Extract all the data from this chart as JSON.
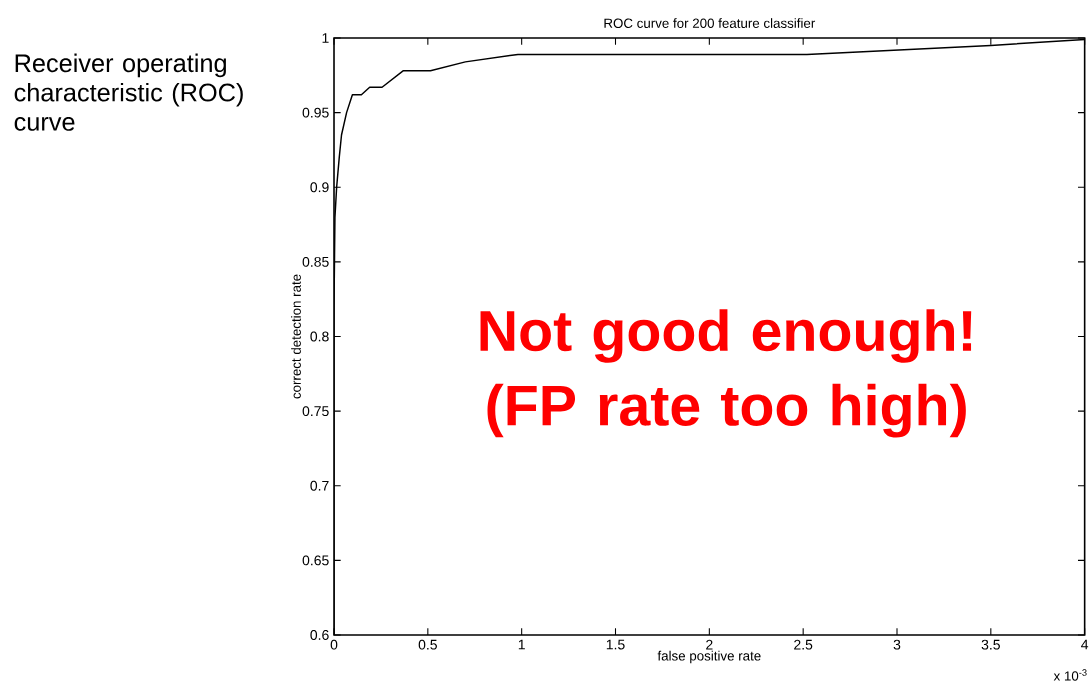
{
  "chart_data": {
    "type": "line",
    "title": "ROC curve for 200 feature classifier",
    "xlabel": "false positive rate",
    "ylabel": "correct detection rate",
    "x": [
      0,
      0,
      0.005,
      0.014,
      0.028,
      0.04,
      0.067,
      0.098,
      0.146,
      0.19,
      0.256,
      0.368,
      0.514,
      0.7,
      0.98,
      2.52,
      3.5,
      4
    ],
    "series": [
      {
        "color": "#000000",
        "values": [
          0.6,
          0.82,
          0.88,
          0.9,
          0.92,
          0.935,
          0.95,
          0.962,
          0.962,
          0.967,
          0.967,
          0.978,
          0.978,
          0.984,
          0.989,
          0.989,
          0.995,
          0.999
        ]
      }
    ],
    "xlim": [
      0,
      4
    ],
    "ylim": [
      0.6,
      1
    ],
    "xticks": [
      0,
      0.5,
      1,
      1.5,
      2,
      2.5,
      3,
      3.5,
      4
    ],
    "yticks": [
      0.6,
      0.65,
      0.7,
      0.75,
      0.8,
      0.85,
      0.9,
      0.95,
      1
    ],
    "annotations": [
      "Receiver operating characteristic (ROC) curve",
      "Not good enough! (FP rate too high)",
      "x 10$^{-3}$"
    ]
  }
}
